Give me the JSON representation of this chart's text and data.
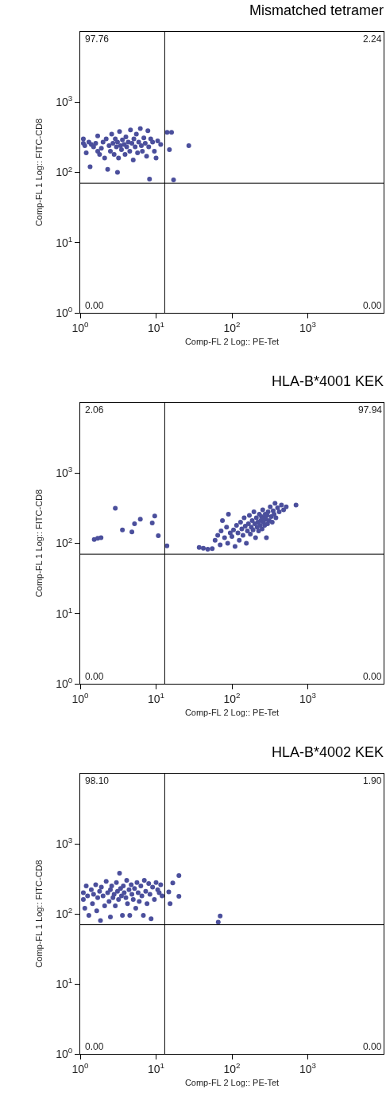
{
  "chart_data": [
    {
      "type": "scatter",
      "title": "Mismatched tetramer",
      "xlabel": "Comp-FL 2 Log:: PE-Tet",
      "ylabel": "Comp-FL 1 Log:: FITC-CD8",
      "log": "xy",
      "marker": "circle",
      "xlim": [
        1,
        10000
      ],
      "ylim": [
        1,
        10000
      ],
      "xticks": [
        {
          "value": 1,
          "label": "10$^{0}$"
        },
        {
          "value": 10,
          "label": "10$^{1}$"
        },
        {
          "value": 100,
          "label": "10$^{2}$"
        },
        {
          "value": 1000,
          "label": "10$^{3}$"
        }
      ],
      "yticks": [
        {
          "value": 1,
          "label": "10$^{0}$"
        },
        {
          "value": 10,
          "label": "10$^{1}$"
        },
        {
          "value": 100,
          "label": "10$^{2}$"
        },
        {
          "value": 1000,
          "label": "10$^{3}$"
        }
      ],
      "ref_lines": [
        {
          "axis": "x",
          "value": 13,
          "color": "#000000"
        },
        {
          "axis": "y",
          "value": 70,
          "color": "#000000"
        }
      ],
      "annotations": [
        "97.76",
        "2.24",
        "0.00",
        "0.00"
      ],
      "series": [
        {
          "color": "#4b4f9c",
          "x": [
            1.1,
            1.1,
            1.15,
            1.2,
            1.3,
            1.35,
            1.4,
            1.5,
            1.6,
            1.7,
            1.7,
            1.8,
            1.9,
            2.0,
            2.1,
            2.2,
            2.3,
            2.4,
            2.5,
            2.6,
            2.7,
            2.8,
            2.9,
            3.0,
            3.1,
            3.1,
            3.2,
            3.3,
            3.4,
            3.5,
            3.6,
            3.8,
            3.9,
            4.0,
            4.1,
            4.3,
            4.5,
            4.6,
            4.8,
            5.0,
            5.1,
            5.3,
            5.5,
            5.7,
            5.9,
            6.2,
            6.4,
            6.6,
            6.9,
            7.2,
            7.5,
            7.8,
            8.0,
            8.2,
            8.5,
            9.0,
            9.5,
            10,
            10.5,
            11.5,
            14,
            16,
            15,
            17,
            27
          ],
          "values": [
            300,
            260,
            240,
            190,
            270,
            120,
            250,
            230,
            260,
            200,
            330,
            180,
            220,
            270,
            160,
            300,
            110,
            240,
            200,
            350,
            260,
            180,
            300,
            230,
            100,
            270,
            160,
            380,
            240,
            210,
            290,
            250,
            180,
            320,
            230,
            270,
            200,
            400,
            260,
            150,
            300,
            230,
            350,
            190,
            270,
            420,
            240,
            200,
            310,
            260,
            170,
            390,
            230,
            80,
            300,
            270,
            200,
            160,
            280,
            250,
            370,
            370,
            210,
            78,
            240
          ]
        }
      ]
    },
    {
      "type": "scatter",
      "title": "HLA-B*4001 KEK",
      "xlabel": "Comp-FL 2 Log:: PE-Tet",
      "ylabel": "Comp-FL 1 Log:: FITC-CD8",
      "log": "xy",
      "marker": "circle",
      "xlim": [
        1,
        10000
      ],
      "ylim": [
        1,
        10000
      ],
      "xticks": [
        {
          "value": 1,
          "label": "10$^{0}$"
        },
        {
          "value": 10,
          "label": "10$^{1}$"
        },
        {
          "value": 100,
          "label": "10$^{2}$"
        },
        {
          "value": 1000,
          "label": "10$^{3}$"
        }
      ],
      "yticks": [
        {
          "value": 1,
          "label": "10$^{0}$"
        },
        {
          "value": 10,
          "label": "10$^{1}$"
        },
        {
          "value": 100,
          "label": "10$^{2}$"
        },
        {
          "value": 1000,
          "label": "10$^{3}$"
        }
      ],
      "ref_lines": [
        {
          "axis": "x",
          "value": 13,
          "color": "#000000"
        },
        {
          "axis": "y",
          "value": 70,
          "color": "#000000"
        }
      ],
      "annotations": [
        "2.06",
        "97.94",
        "0.00",
        "0.00"
      ],
      "series": [
        {
          "color": "#4b4f9c",
          "x": [
            1.53,
            1.7,
            1.88,
            2.9,
            3.6,
            4.8,
            5.2,
            6.2,
            8.9,
            9.6,
            10.7,
            13.9,
            37,
            42,
            48,
            55,
            60,
            65,
            70,
            72,
            75,
            80,
            85,
            88,
            90,
            95,
            100,
            105,
            110,
            115,
            120,
            125,
            130,
            135,
            140,
            145,
            150,
            155,
            160,
            165,
            170,
            175,
            180,
            185,
            190,
            195,
            200,
            205,
            210,
            215,
            220,
            225,
            230,
            235,
            240,
            245,
            250,
            255,
            260,
            265,
            270,
            275,
            280,
            285,
            290,
            295,
            300,
            310,
            320,
            330,
            340,
            350,
            360,
            370,
            380,
            400,
            420,
            450,
            480,
            520,
            700
          ],
          "values": [
            113,
            118,
            120,
            315,
            155,
            145,
            190,
            220,
            195,
            245,
            128,
            92,
            87,
            85,
            82,
            84,
            110,
            130,
            95,
            150,
            210,
            120,
            170,
            100,
            260,
            140,
            125,
            155,
            90,
            180,
            140,
            110,
            200,
            160,
            130,
            230,
            175,
            100,
            150,
            190,
            250,
            135,
            170,
            210,
            155,
            280,
            190,
            120,
            230,
            170,
            200,
            150,
            260,
            180,
            210,
            240,
            160,
            300,
            200,
            230,
            180,
            260,
            220,
            120,
            250,
            190,
            280,
            210,
            330,
            240,
            200,
            290,
            260,
            370,
            230,
            320,
            280,
            350,
            300,
            330,
            350
          ]
        }
      ]
    },
    {
      "type": "scatter",
      "title": "HLA-B*4002 KEK",
      "xlabel": "Comp-FL 2 Log:: PE-Tet",
      "ylabel": "Comp-FL 1 Log:: FITC-CD8",
      "log": "xy",
      "marker": "circle",
      "xlim": [
        1,
        10000
      ],
      "ylim": [
        1,
        10000
      ],
      "xticks": [
        {
          "value": 1,
          "label": "10$^{0}$"
        },
        {
          "value": 10,
          "label": "10$^{1}$"
        },
        {
          "value": 100,
          "label": "10$^{2}$"
        },
        {
          "value": 1000,
          "label": "10$^{3}$"
        }
      ],
      "yticks": [
        {
          "value": 1,
          "label": "10$^{0}$"
        },
        {
          "value": 10,
          "label": "10$^{1}$"
        },
        {
          "value": 100,
          "label": "10$^{2}$"
        },
        {
          "value": 1000,
          "label": "10$^{3}$"
        }
      ],
      "ref_lines": [
        {
          "axis": "x",
          "value": 13,
          "color": "#000000"
        },
        {
          "axis": "y",
          "value": 70,
          "color": "#000000"
        }
      ],
      "annotations": [
        "98.10",
        "1.90",
        "0.00",
        "0.00"
      ],
      "series": [
        {
          "color": "#4b4f9c",
          "x": [
            1.1,
            1.1,
            1.15,
            1.2,
            1.25,
            1.3,
            1.4,
            1.45,
            1.5,
            1.6,
            1.65,
            1.7,
            1.8,
            1.85,
            1.9,
            2.0,
            2.1,
            2.2,
            2.3,
            2.4,
            2.5,
            2.5,
            2.6,
            2.7,
            2.8,
            2.9,
            3.0,
            3.1,
            3.2,
            3.3,
            3.4,
            3.5,
            3.6,
            3.7,
            3.8,
            4.0,
            4.1,
            4.2,
            4.4,
            4.5,
            4.7,
            4.8,
            5.0,
            5.2,
            5.4,
            5.6,
            5.8,
            6.0,
            6.3,
            6.5,
            6.8,
            7.0,
            7.3,
            7.6,
            8.0,
            8.3,
            8.6,
            9.0,
            9.5,
            10,
            10.5,
            11,
            11.5,
            12,
            14.7,
            15.3,
            16.6,
            20,
            20,
            66,
            70
          ],
          "values": [
            200,
            160,
            120,
            250,
            180,
            95,
            220,
            140,
            190,
            260,
            110,
            170,
            210,
            80,
            240,
            180,
            130,
            290,
            200,
            150,
            220,
            90,
            250,
            170,
            190,
            130,
            280,
            210,
            160,
            380,
            230,
            180,
            95,
            250,
            200,
            170,
            300,
            140,
            220,
            95,
            260,
            190,
            160,
            230,
            120,
            280,
            200,
            150,
            250,
            180,
            95,
            300,
            210,
            140,
            270,
            190,
            85,
            240,
            160,
            280,
            220,
            200,
            260,
            180,
            205,
            140,
            276,
            350,
            178,
            76,
            93
          ]
        }
      ]
    }
  ]
}
